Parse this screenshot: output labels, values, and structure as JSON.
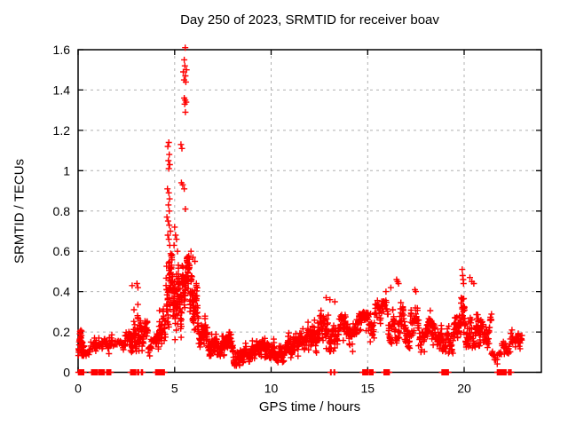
{
  "chart_data": {
    "type": "scatter",
    "title": "Day 250 of 2023, SRMTID for receiver boav",
    "xlabel": "GPS time / hours",
    "ylabel": "SRMTID / TECUs",
    "xlim": [
      0,
      24
    ],
    "ylim": [
      0,
      1.6
    ],
    "xticks": [
      {
        "v": 0,
        "label": "0"
      },
      {
        "v": 5,
        "label": "5"
      },
      {
        "v": 10,
        "label": "10"
      },
      {
        "v": 15,
        "label": "15"
      },
      {
        "v": 20,
        "label": "20"
      }
    ],
    "yticks": [
      {
        "v": 0,
        "label": "0"
      },
      {
        "v": 0.2,
        "label": "0.2"
      },
      {
        "v": 0.4,
        "label": "0.4"
      },
      {
        "v": 0.6,
        "label": "0.6"
      },
      {
        "v": 0.8,
        "label": "0.8"
      },
      {
        "v": 1,
        "label": "1"
      },
      {
        "v": 1.2,
        "label": "1.2"
      },
      {
        "v": 1.4,
        "label": "1.4"
      },
      {
        "v": 1.6,
        "label": "1.6"
      }
    ],
    "grid": {
      "show": true,
      "color": "#b0b0b0",
      "dash": "3,4"
    },
    "frame_color": "#000000",
    "text_color": "#000000",
    "legend": null,
    "marker": {
      "shape": "plus",
      "color": "#ff0000",
      "size": 7,
      "stroke_width": 1.4
    },
    "feature_points_format": "[gps_hour, srmtid_tecus] — individually readable peak points",
    "feature_points": [
      [
        5.55,
        1.61
      ],
      [
        5.5,
        1.55
      ],
      [
        5.53,
        1.52
      ],
      [
        5.62,
        1.5
      ],
      [
        5.45,
        1.49
      ],
      [
        5.56,
        1.47
      ],
      [
        5.49,
        1.45
      ],
      [
        5.58,
        1.44
      ],
      [
        5.5,
        1.36
      ],
      [
        5.55,
        1.35
      ],
      [
        5.6,
        1.34
      ],
      [
        5.52,
        1.33
      ],
      [
        5.56,
        1.29
      ],
      [
        5.33,
        1.13
      ],
      [
        5.38,
        1.11
      ],
      [
        4.7,
        1.14
      ],
      [
        4.65,
        1.12
      ],
      [
        4.72,
        1.08
      ],
      [
        4.68,
        1.05
      ],
      [
        4.75,
        1.03
      ],
      [
        4.7,
        1.01
      ],
      [
        4.63,
        0.91
      ],
      [
        4.7,
        0.89
      ],
      [
        4.74,
        0.86
      ],
      [
        4.68,
        0.83
      ],
      [
        4.72,
        0.8
      ],
      [
        5.35,
        0.94
      ],
      [
        5.42,
        0.93
      ],
      [
        5.5,
        0.91
      ],
      [
        5.56,
        0.81
      ],
      [
        4.6,
        0.77
      ],
      [
        4.66,
        0.75
      ],
      [
        4.72,
        0.73
      ],
      [
        4.78,
        0.7
      ],
      [
        4.65,
        0.68
      ],
      [
        4.7,
        0.66
      ],
      [
        4.75,
        0.63
      ],
      [
        5.0,
        0.72
      ],
      [
        5.05,
        0.68
      ],
      [
        5.1,
        0.66
      ],
      [
        4.97,
        0.63
      ],
      [
        5.15,
        0.6
      ],
      [
        5.85,
        0.6
      ],
      [
        5.95,
        0.57
      ],
      [
        6.05,
        0.55
      ],
      [
        2.8,
        0.43
      ],
      [
        3.05,
        0.44
      ],
      [
        3.1,
        0.42
      ],
      [
        12.85,
        0.37
      ],
      [
        13.05,
        0.36
      ],
      [
        13.3,
        0.35
      ],
      [
        15.95,
        0.4
      ],
      [
        16.2,
        0.42
      ],
      [
        16.5,
        0.46
      ],
      [
        16.55,
        0.45
      ],
      [
        16.6,
        0.44
      ],
      [
        17.45,
        0.41
      ],
      [
        17.5,
        0.4
      ],
      [
        19.9,
        0.51
      ],
      [
        19.92,
        0.48
      ],
      [
        19.95,
        0.46
      ],
      [
        19.97,
        0.44
      ],
      [
        20.3,
        0.47
      ],
      [
        20.4,
        0.45
      ],
      [
        20.5,
        0.44
      ]
    ],
    "band_segments_format": "[start_hour, end_hour, min_TECU, max_TECU, approx_point_count, peaked_flag] — dense 30s-sampled scatter band approximation",
    "band_segments": [
      [
        0.02,
        0.33,
        0.08,
        0.28,
        46,
        1
      ],
      [
        0.36,
        0.7,
        0.07,
        0.15,
        10,
        0
      ],
      [
        0.72,
        1.42,
        0.06,
        0.18,
        40,
        0
      ],
      [
        1.42,
        1.8,
        0.08,
        0.2,
        24,
        0
      ],
      [
        1.8,
        2.35,
        0.08,
        0.16,
        16,
        0
      ],
      [
        2.35,
        2.72,
        0.1,
        0.22,
        24,
        0
      ],
      [
        2.72,
        3.32,
        0.1,
        0.42,
        70,
        1
      ],
      [
        3.32,
        3.62,
        0.1,
        0.28,
        28,
        0
      ],
      [
        3.62,
        4.12,
        0.08,
        0.22,
        26,
        0
      ],
      [
        4.12,
        4.55,
        0.1,
        0.36,
        44,
        0
      ],
      [
        4.55,
        5.02,
        0.16,
        0.62,
        84,
        0
      ],
      [
        5.02,
        5.38,
        0.16,
        0.56,
        56,
        0
      ],
      [
        5.38,
        5.78,
        0.26,
        0.58,
        64,
        0
      ],
      [
        5.78,
        6.18,
        0.16,
        0.52,
        60,
        0
      ],
      [
        6.18,
        6.72,
        0.1,
        0.3,
        56,
        0
      ],
      [
        6.72,
        7.32,
        0.08,
        0.26,
        64,
        1
      ],
      [
        7.32,
        8.02,
        0.05,
        0.2,
        70,
        0
      ],
      [
        8.02,
        8.72,
        0.03,
        0.15,
        70,
        0
      ],
      [
        8.72,
        9.42,
        0.05,
        0.17,
        62,
        0
      ],
      [
        9.42,
        10.12,
        0.07,
        0.24,
        66,
        1
      ],
      [
        10.12,
        10.82,
        0.05,
        0.18,
        60,
        0
      ],
      [
        10.82,
        11.62,
        0.07,
        0.22,
        66,
        0
      ],
      [
        11.62,
        12.42,
        0.09,
        0.26,
        70,
        0
      ],
      [
        12.42,
        13.32,
        0.1,
        0.32,
        76,
        0
      ],
      [
        13.32,
        14.22,
        0.1,
        0.3,
        70,
        0
      ],
      [
        14.22,
        15.12,
        0.12,
        0.3,
        62,
        0
      ],
      [
        15.12,
        16.12,
        0.12,
        0.36,
        66,
        0
      ],
      [
        16.12,
        17.02,
        0.14,
        0.44,
        72,
        1
      ],
      [
        17.02,
        17.92,
        0.1,
        0.4,
        60,
        1
      ],
      [
        17.92,
        18.62,
        0.1,
        0.33,
        52,
        1
      ],
      [
        18.62,
        19.42,
        0.09,
        0.3,
        56,
        0
      ],
      [
        19.42,
        19.78,
        0.12,
        0.3,
        30,
        0
      ],
      [
        19.78,
        20.08,
        0.15,
        0.48,
        30,
        1
      ],
      [
        20.08,
        20.82,
        0.12,
        0.46,
        70,
        1
      ],
      [
        20.82,
        21.42,
        0.08,
        0.3,
        46,
        0
      ],
      [
        21.42,
        21.95,
        0.04,
        0.14,
        16,
        0
      ],
      [
        21.95,
        23.02,
        0.09,
        0.22,
        52,
        0
      ]
    ],
    "zero_runs_format": "[start_hour, end_hour] ranges of points at SRMTID = 0 (solid red blocks on the x-axis)",
    "zero_runs": [
      [
        0.02,
        0.3
      ],
      [
        0.7,
        1.0
      ],
      [
        1.08,
        1.35
      ],
      [
        1.48,
        1.7
      ],
      [
        2.72,
        3.0
      ],
      [
        3.08,
        3.16
      ],
      [
        3.28,
        3.36
      ],
      [
        4.02,
        4.48
      ],
      [
        13.08,
        13.12
      ],
      [
        13.26,
        13.3
      ],
      [
        14.75,
        15.02
      ],
      [
        15.1,
        15.3
      ],
      [
        15.85,
        16.12
      ],
      [
        18.85,
        19.2
      ],
      [
        21.72,
        21.96
      ],
      [
        22.02,
        22.18
      ],
      [
        22.3,
        22.34
      ],
      [
        22.4,
        22.44
      ]
    ]
  }
}
